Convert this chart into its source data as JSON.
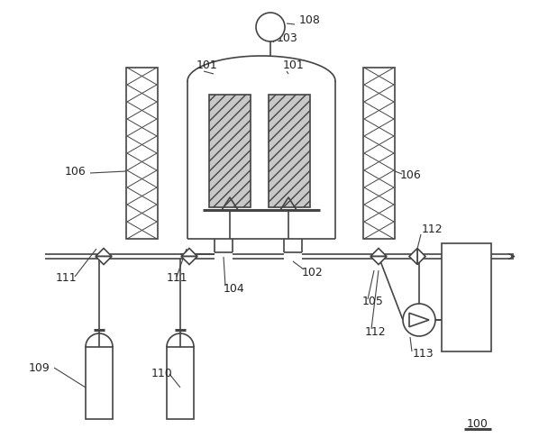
{
  "line_color": "#444444",
  "lw": 1.2,
  "lw_thick": 2.2,
  "font_size": 9
}
